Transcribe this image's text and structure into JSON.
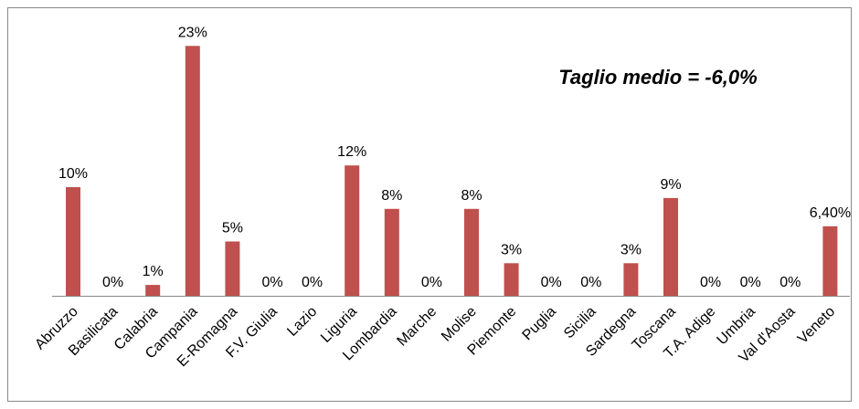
{
  "chart_data": {
    "type": "bar",
    "annotation": "Taglio medio = -6,0%",
    "categories": [
      "Abruzzo",
      "Basilicata",
      "Calabria",
      "Campania",
      "E-Romagna",
      "F.V. Giulia",
      "Lazio",
      "Liguria",
      "Lombardia",
      "Marche",
      "Molise",
      "Piemonte",
      "Puglia",
      "Sicilia",
      "Sardegna",
      "Toscana",
      "T.A. Adige",
      "Umbria",
      "Val d'Aosta",
      "Veneto"
    ],
    "values": [
      10,
      0,
      1,
      23,
      5,
      0,
      0,
      12,
      8,
      0,
      8,
      3,
      0,
      0,
      3,
      9,
      0,
      0,
      0,
      6.4
    ],
    "value_labels": [
      "10%",
      "0%",
      "1%",
      "23%",
      "5%",
      "0%",
      "0%",
      "12%",
      "8%",
      "0%",
      "8%",
      "3%",
      "0%",
      "0%",
      "3%",
      "9%",
      "0%",
      "0%",
      "0%",
      "6,40%"
    ],
    "color": "#c0504d"
  }
}
